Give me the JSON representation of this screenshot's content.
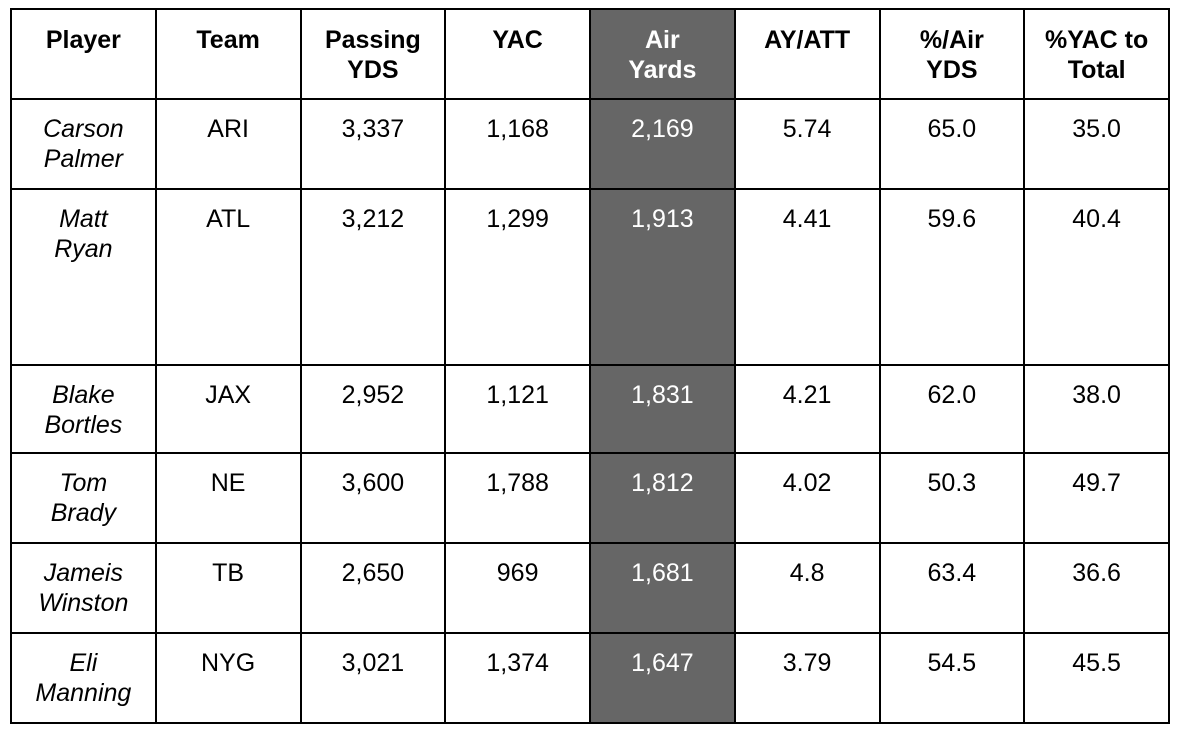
{
  "table": {
    "headers": [
      {
        "line1": "Player",
        "line2": ""
      },
      {
        "line1": "Team",
        "line2": ""
      },
      {
        "line1": "Passing",
        "line2": "YDS"
      },
      {
        "line1": "YAC",
        "line2": ""
      },
      {
        "line1": "Air",
        "line2": "Yards"
      },
      {
        "line1": "AY/ATT",
        "line2": ""
      },
      {
        "line1": "%/Air",
        "line2": "YDS"
      },
      {
        "line1": "%YAC to",
        "line2": "Total"
      }
    ],
    "highlight_color": "#666666",
    "rows": [
      {
        "first": "Carson",
        "last": "Palmer",
        "team": "ARI",
        "passing_yds": "3,337",
        "yac": "1,168",
        "air_yards": "2,169",
        "ay_att": "5.74",
        "pct_air_yds": "65.0",
        "pct_yac_total": "35.0"
      },
      {
        "first": "Matt",
        "last": "Ryan",
        "team": "ATL",
        "passing_yds": "3,212",
        "yac": "1,299",
        "air_yards": "1,913",
        "ay_att": "4.41",
        "pct_air_yds": "59.6",
        "pct_yac_total": "40.4"
      },
      {
        "first": "Blake",
        "last": "Bortles",
        "team": "JAX",
        "passing_yds": "2,952",
        "yac": "1,121",
        "air_yards": "1,831",
        "ay_att": "4.21",
        "pct_air_yds": "62.0",
        "pct_yac_total": "38.0"
      },
      {
        "first": "Tom",
        "last": "Brady",
        "team": "NE",
        "passing_yds": "3,600",
        "yac": "1,788",
        "air_yards": "1,812",
        "ay_att": "4.02",
        "pct_air_yds": "50.3",
        "pct_yac_total": "49.7"
      },
      {
        "first": "Jameis",
        "last": "Winston",
        "team": "TB",
        "passing_yds": "2,650",
        "yac": "969",
        "air_yards": "1,681",
        "ay_att": "4.8",
        "pct_air_yds": "63.4",
        "pct_yac_total": "36.6"
      },
      {
        "first": "Eli",
        "last": "Manning",
        "team": "NYG",
        "passing_yds": "3,021",
        "yac": "1,374",
        "air_yards": "1,647",
        "ay_att": "3.79",
        "pct_air_yds": "54.5",
        "pct_yac_total": "45.5"
      }
    ]
  }
}
